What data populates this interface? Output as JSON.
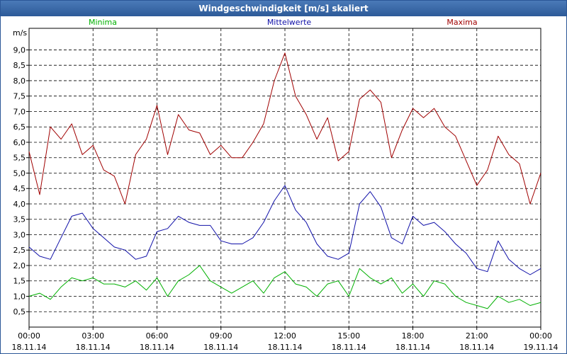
{
  "window": {
    "title": "Windgeschwindigkeit [m/s] skaliert"
  },
  "chart_data": {
    "type": "line",
    "title": "Windgeschwindigkeit [m/s] skaliert",
    "ylabel": "m/s",
    "ylim": [
      0,
      9.7
    ],
    "xlim": [
      0,
      24
    ],
    "y_ticks": [
      "0,5",
      "1,0",
      "1,5",
      "2,0",
      "2,5",
      "3,0",
      "3,5",
      "4,0",
      "4,5",
      "5,0",
      "5,5",
      "6,0",
      "6,5",
      "7,0",
      "7,5",
      "8,0",
      "8,5",
      "9,0"
    ],
    "x_ticks": [
      {
        "time": "00:00",
        "date": "18.11.14"
      },
      {
        "time": "03:00",
        "date": "18.11.14"
      },
      {
        "time": "06:00",
        "date": "18.11.14"
      },
      {
        "time": "09:00",
        "date": "18.11.14"
      },
      {
        "time": "12:00",
        "date": "18.11.14"
      },
      {
        "time": "15:00",
        "date": "18.11.14"
      },
      {
        "time": "18:00",
        "date": "18.11.14"
      },
      {
        "time": "21:00",
        "date": "18.11.14"
      },
      {
        "time": "00:00",
        "date": "19.11.14"
      }
    ],
    "grid": true,
    "legend_position": "top",
    "series": [
      {
        "name": "Minima",
        "color": "#00b000",
        "x": [
          0,
          0.5,
          1,
          1.5,
          2,
          2.5,
          3,
          3.5,
          4,
          4.5,
          5,
          5.5,
          6,
          6.5,
          7,
          7.5,
          8,
          8.5,
          9,
          9.5,
          10,
          10.5,
          11,
          11.5,
          12,
          12.5,
          13,
          13.5,
          14,
          14.5,
          15,
          15.5,
          16,
          16.5,
          17,
          17.5,
          18,
          18.5,
          19,
          19.5,
          20,
          20.5,
          21,
          21.5,
          22,
          22.5,
          23,
          23.5,
          24
        ],
        "values": [
          1.0,
          1.1,
          0.9,
          1.3,
          1.6,
          1.5,
          1.6,
          1.4,
          1.4,
          1.3,
          1.5,
          1.2,
          1.6,
          1.0,
          1.5,
          1.7,
          2.0,
          1.5,
          1.3,
          1.1,
          1.3,
          1.5,
          1.1,
          1.6,
          1.8,
          1.4,
          1.3,
          1.0,
          1.4,
          1.5,
          1.0,
          1.9,
          1.6,
          1.4,
          1.6,
          1.1,
          1.4,
          1.0,
          1.5,
          1.4,
          1.0,
          0.8,
          0.7,
          0.6,
          1.0,
          0.8,
          0.9,
          0.7,
          0.8
        ]
      },
      {
        "name": "Mittelwerte",
        "color": "#1010a8",
        "x": [
          0,
          0.5,
          1,
          1.5,
          2,
          2.5,
          3,
          3.5,
          4,
          4.5,
          5,
          5.5,
          6,
          6.5,
          7,
          7.5,
          8,
          8.5,
          9,
          9.5,
          10,
          10.5,
          11,
          11.5,
          12,
          12.5,
          13,
          13.5,
          14,
          14.5,
          15,
          15.5,
          16,
          16.5,
          17,
          17.5,
          18,
          18.5,
          19,
          19.5,
          20,
          20.5,
          21,
          21.5,
          22,
          22.5,
          23,
          23.5,
          24
        ],
        "values": [
          2.6,
          2.3,
          2.2,
          2.9,
          3.6,
          3.7,
          3.2,
          2.9,
          2.6,
          2.5,
          2.2,
          2.3,
          3.1,
          3.2,
          3.6,
          3.4,
          3.3,
          3.3,
          2.8,
          2.7,
          2.7,
          2.9,
          3.4,
          4.1,
          4.6,
          3.8,
          3.4,
          2.7,
          2.3,
          2.2,
          2.4,
          4.0,
          4.4,
          3.9,
          2.9,
          2.7,
          3.6,
          3.3,
          3.4,
          3.1,
          2.7,
          2.4,
          1.9,
          1.8,
          2.8,
          2.2,
          1.9,
          1.7,
          1.9
        ]
      },
      {
        "name": "Maxima",
        "color": "#a00000",
        "x": [
          0,
          0.5,
          1,
          1.5,
          2,
          2.5,
          3,
          3.5,
          4,
          4.5,
          5,
          5.5,
          6,
          6.5,
          7,
          7.5,
          8,
          8.5,
          9,
          9.5,
          10,
          10.5,
          11,
          11.5,
          12,
          12.5,
          13,
          13.5,
          14,
          14.5,
          15,
          15.5,
          16,
          16.5,
          17,
          17.5,
          18,
          18.5,
          19,
          19.5,
          20,
          20.5,
          21,
          21.5,
          22,
          22.5,
          23,
          23.5,
          24
        ],
        "values": [
          5.7,
          4.3,
          6.5,
          6.1,
          6.6,
          5.6,
          5.9,
          5.1,
          4.9,
          4.0,
          5.6,
          6.1,
          7.2,
          5.6,
          6.9,
          6.4,
          6.3,
          5.6,
          5.9,
          5.5,
          5.5,
          6.0,
          6.6,
          8.0,
          8.9,
          7.5,
          6.9,
          6.1,
          6.8,
          5.4,
          5.7,
          7.4,
          7.7,
          7.3,
          5.5,
          6.4,
          7.1,
          6.8,
          7.1,
          6.5,
          6.2,
          5.4,
          4.6,
          5.1,
          6.2,
          5.6,
          5.3,
          4.0,
          5.0
        ]
      }
    ]
  }
}
